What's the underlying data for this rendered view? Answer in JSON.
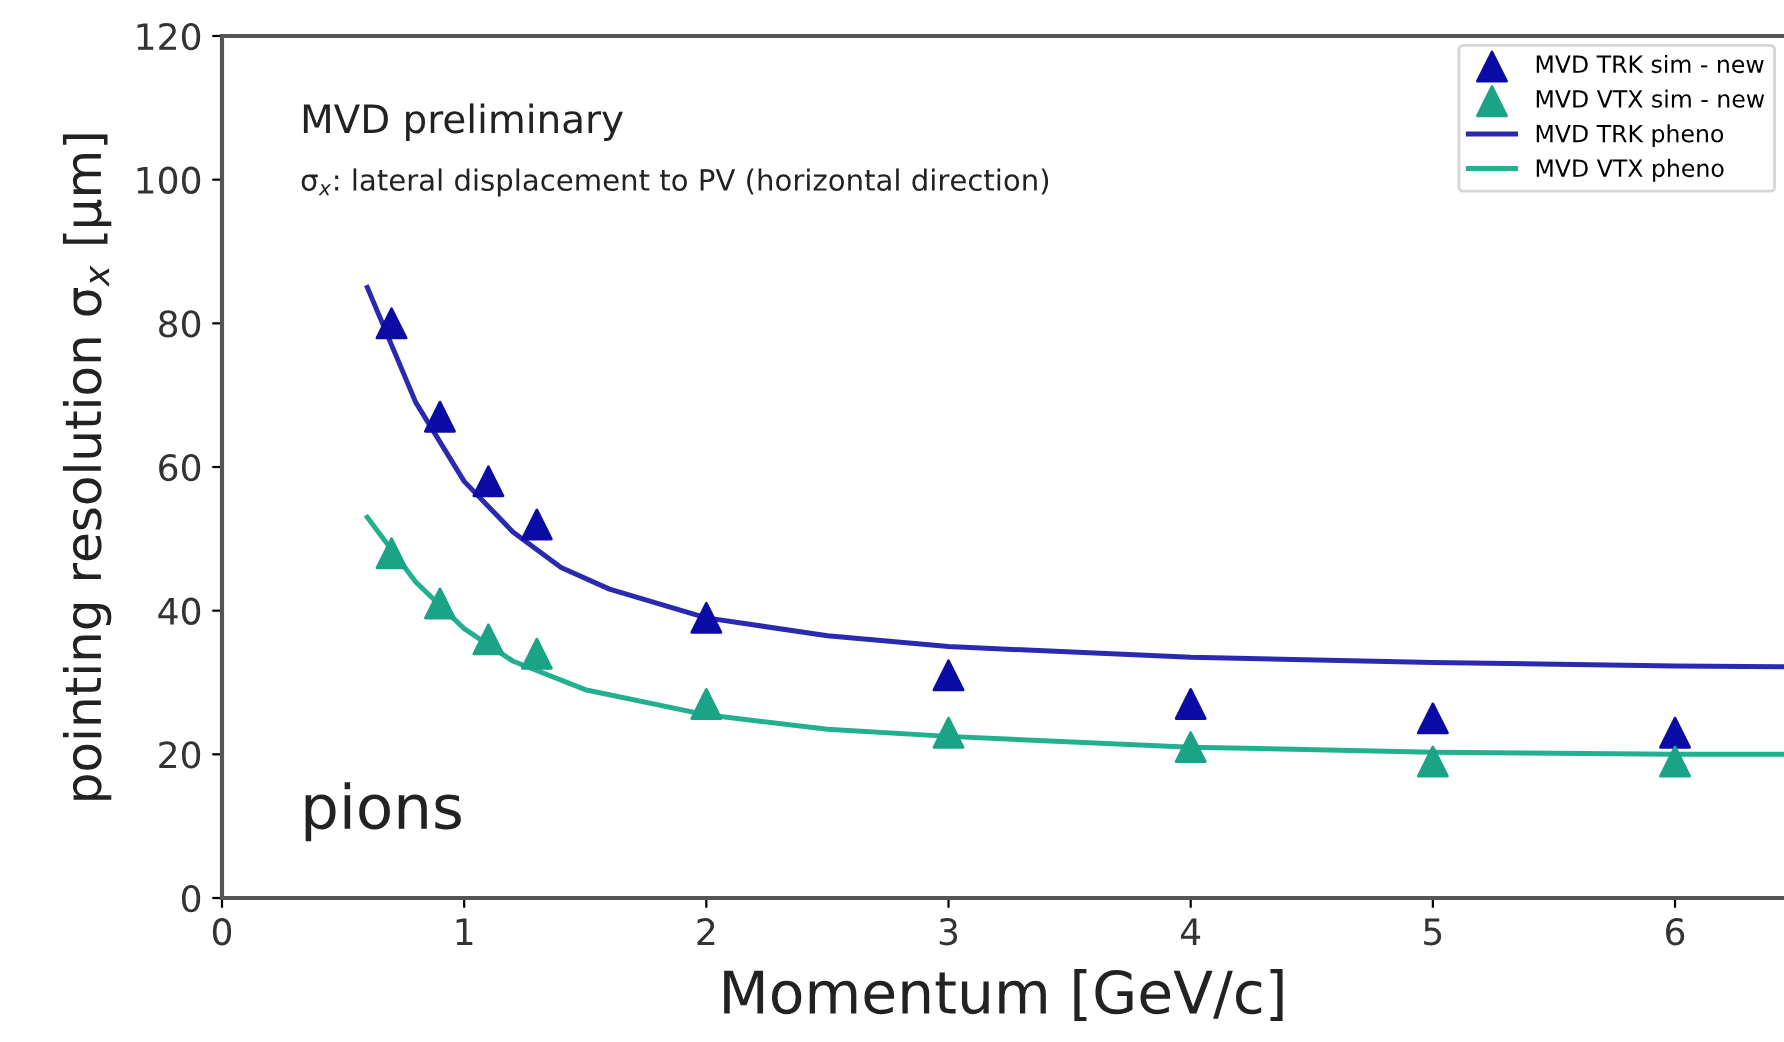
{
  "chart_data": {
    "type": "scatter",
    "xlabel": "Momentum [GeV/c]",
    "ylabel": "pointing resolution σ$_{x}$ [µm]",
    "annotations": [
      "MVD preliminary",
      "σ$_{x}$: lateral displacement to PV (horizontal direction)",
      "pions"
    ],
    "xlim": [
      0,
      6.45
    ],
    "ylim": [
      0,
      120
    ],
    "xticks": [
      0,
      1,
      2,
      3,
      4,
      5,
      6
    ],
    "yticks": [
      0,
      20,
      40,
      60,
      80,
      100,
      120
    ],
    "grid": false,
    "legend": "top right",
    "series": [
      {
        "name": "MVD TRK sim - new",
        "marker": "triangle",
        "color": "#0b0ba6",
        "x": [
          0.7,
          0.9,
          1.1,
          1.3,
          2,
          3,
          4,
          5,
          6
        ],
        "values": [
          80,
          67,
          58,
          52,
          39,
          31,
          27,
          25,
          23
        ]
      },
      {
        "name": "MVD VTX sim - new",
        "marker": "triangle",
        "color": "#1ba386",
        "x": [
          0.7,
          0.9,
          1.1,
          1.3,
          2,
          3,
          4,
          5,
          6
        ],
        "values": [
          48,
          41,
          36,
          34,
          27,
          23,
          21,
          19,
          19
        ]
      },
      {
        "name": "MVD TRK pheno",
        "type": "line",
        "color": "#2a2ab0",
        "x": [
          0.6,
          0.8,
          1.0,
          1.2,
          1.4,
          1.6,
          2.0,
          2.5,
          3,
          4,
          5,
          6,
          6.45
        ],
        "values": [
          85,
          69,
          58,
          51,
          46,
          43,
          39,
          36.5,
          35,
          33.5,
          32.8,
          32.3,
          32.2
        ]
      },
      {
        "name": "MVD VTX pheno",
        "type": "line",
        "color": "#22b08e",
        "x": [
          0.6,
          0.8,
          1.0,
          1.2,
          1.5,
          2,
          2.5,
          3,
          4,
          5,
          6,
          6.45
        ],
        "values": [
          53,
          44,
          37.5,
          33,
          29,
          25.5,
          23.5,
          22.5,
          21,
          20.3,
          20,
          20
        ]
      }
    ]
  }
}
